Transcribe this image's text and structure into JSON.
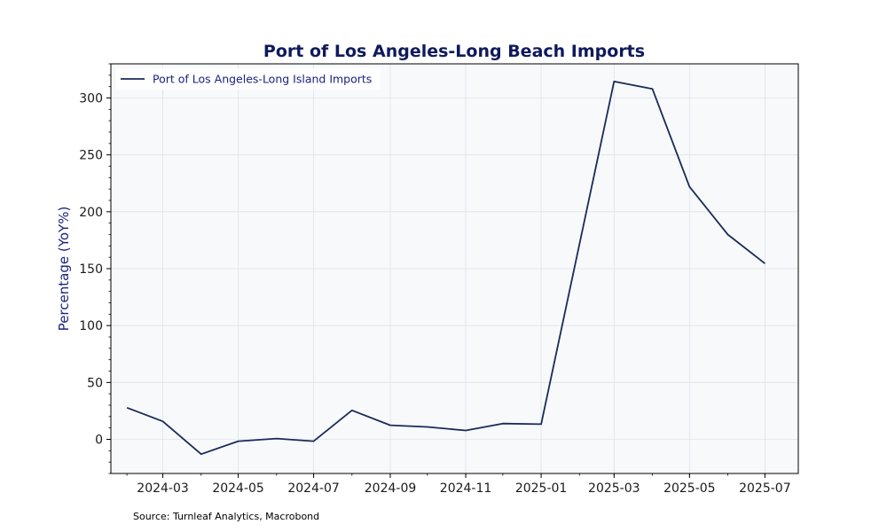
{
  "chart_data": {
    "type": "line",
    "title": "Port of Los Angeles-Long Beach Imports",
    "ylabel": "Percentage (YoY%)",
    "xlabel": "",
    "source": "Source: Turnleaf Analytics, Macrobond",
    "xlim": [
      "2024-01-19",
      "2025-07-28"
    ],
    "ylim": [
      -30,
      330
    ],
    "x_ticks": [
      "2024-03",
      "2024-05",
      "2024-07",
      "2024-09",
      "2024-11",
      "2025-01",
      "2025-03",
      "2025-05",
      "2025-07"
    ],
    "y_ticks": [
      0,
      50,
      100,
      150,
      200,
      250,
      300
    ],
    "grid": true,
    "legend_position": "top-left",
    "series": [
      {
        "name": "Port of Los Angeles-Long Island Imports",
        "color": "#1b2a5a",
        "points": [
          {
            "x": "2024-02-01",
            "y": 27.8
          },
          {
            "x": "2024-03-01",
            "y": 15.8
          },
          {
            "x": "2024-04-01",
            "y": -13.0
          },
          {
            "x": "2024-05-01",
            "y": -1.6
          },
          {
            "x": "2024-06-01",
            "y": 0.7
          },
          {
            "x": "2024-07-01",
            "y": -1.6
          },
          {
            "x": "2024-08-01",
            "y": 25.5
          },
          {
            "x": "2024-09-01",
            "y": 12.4
          },
          {
            "x": "2024-10-01",
            "y": 10.9
          },
          {
            "x": "2024-11-01",
            "y": 7.8
          },
          {
            "x": "2024-12-01",
            "y": 13.9
          },
          {
            "x": "2025-01-01",
            "y": 13.3
          },
          {
            "x": "2025-03-01",
            "y": 314.5
          },
          {
            "x": "2025-04-01",
            "y": 308.0
          },
          {
            "x": "2025-05-01",
            "y": 222.0
          },
          {
            "x": "2025-06-01",
            "y": 180.0
          },
          {
            "x": "2025-07-01",
            "y": 154.5
          }
        ]
      }
    ]
  },
  "colors": {
    "title": "#0f1a5c",
    "axis_label": "#1a237e",
    "plot_background": "#f7f9fb",
    "grid": "#dfe3e8",
    "line": "#1b2a5a",
    "legend_text": "#1a237e"
  }
}
